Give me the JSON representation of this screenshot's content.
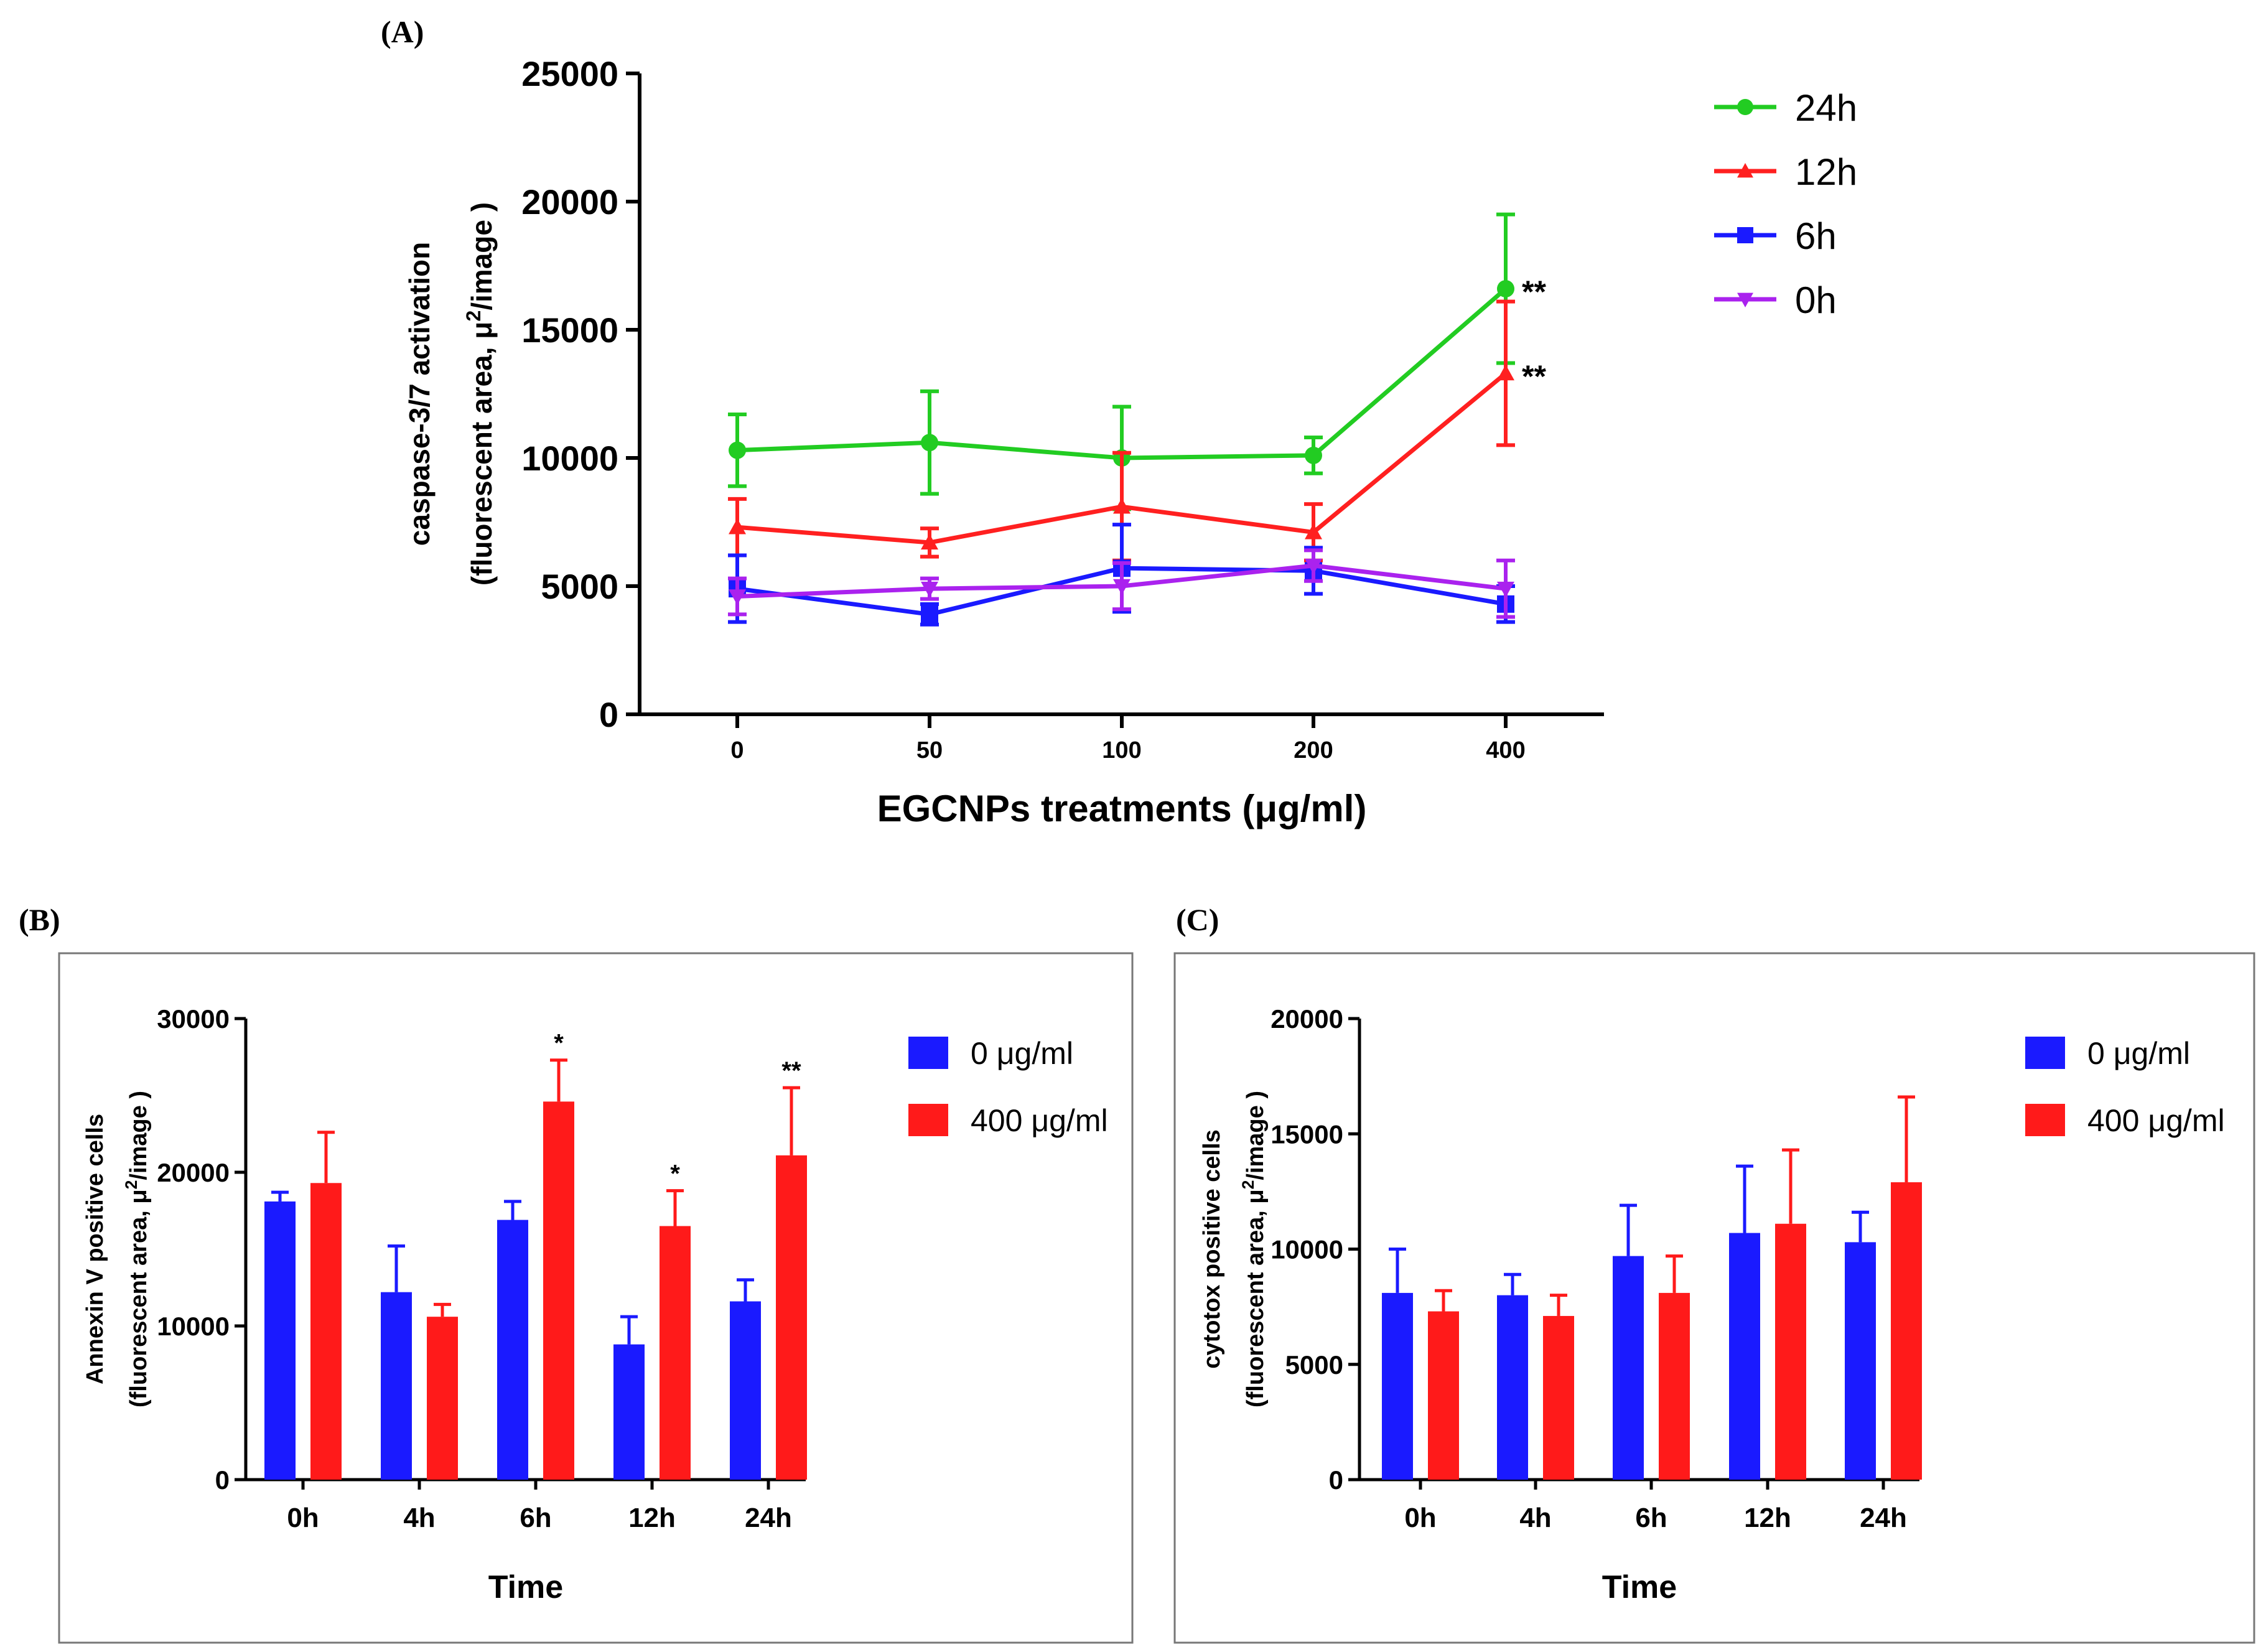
{
  "panels": {
    "A": "(A)",
    "B": "(B)",
    "C": "(C)"
  },
  "chart_data": [
    {
      "id": "A",
      "type": "line",
      "x": [
        "0",
        "50",
        "100",
        "200",
        "400"
      ],
      "xlabel": "EGCNPs treatments (μg/ml)",
      "ylabel": [
        "caspase-3/7 activation",
        "(fluorescent area, μ²/image )"
      ],
      "ylim": [
        0,
        25000
      ],
      "yticks": [
        "0",
        "5000",
        "10000",
        "15000",
        "20000",
        "25000"
      ],
      "legend_position": "right",
      "series": [
        {
          "name": "24h",
          "color": "#22cc22",
          "marker": "circle",
          "values": [
            10300,
            10600,
            10000,
            10100,
            16600
          ],
          "err": [
            1400,
            2000,
            2000,
            700,
            2900
          ],
          "sig": [
            "",
            "",
            "",
            "",
            "**"
          ]
        },
        {
          "name": "12h",
          "color": "#ff2020",
          "marker": "triangle-up",
          "values": [
            7300,
            6700,
            8100,
            7100,
            13300
          ],
          "err": [
            1100,
            550,
            2100,
            1100,
            2800
          ],
          "sig": [
            "",
            "",
            "",
            "",
            "**"
          ]
        },
        {
          "name": "6h",
          "color": "#1a1aff",
          "marker": "square",
          "values": [
            4900,
            3900,
            5700,
            5600,
            4300
          ],
          "err": [
            1300,
            400,
            1700,
            900,
            700
          ],
          "sig": [
            "",
            "",
            "",
            "",
            ""
          ]
        },
        {
          "name": "0h",
          "color": "#aa22ee",
          "marker": "triangle-down",
          "values": [
            4600,
            4900,
            5000,
            5800,
            4900
          ],
          "err": [
            700,
            400,
            900,
            600,
            1100
          ],
          "sig": [
            "",
            "",
            "",
            "",
            ""
          ]
        }
      ]
    },
    {
      "id": "B",
      "type": "bar",
      "categories": [
        "0h",
        "4h",
        "6h",
        "12h",
        "24h"
      ],
      "xlabel": "Time",
      "ylabel": [
        "Annexin V positive cells",
        "(fluorescent area, μ²/image )"
      ],
      "ylim": [
        0,
        30000
      ],
      "yticks": [
        "0",
        "10000",
        "20000",
        "30000"
      ],
      "legend_position": "top-right",
      "series": [
        {
          "name": "0 μg/ml",
          "color": "#1a1aff",
          "values": [
            18100,
            12200,
            16900,
            8800,
            11600
          ],
          "err": [
            600,
            3000,
            1200,
            1800,
            1400
          ],
          "sig": [
            "",
            "",
            "",
            "",
            ""
          ]
        },
        {
          "name": "400 μg/ml",
          "color": "#ff1a1a",
          "values": [
            19300,
            10600,
            24600,
            16500,
            21100
          ],
          "err": [
            3300,
            800,
            2700,
            2300,
            4400
          ],
          "sig": [
            "",
            "",
            "*",
            "*",
            "**"
          ]
        }
      ]
    },
    {
      "id": "C",
      "type": "bar",
      "categories": [
        "0h",
        "4h",
        "6h",
        "12h",
        "24h"
      ],
      "xlabel": "Time",
      "ylabel": [
        "cytotox positive cells",
        "(fluorescent area, μ²/image )"
      ],
      "ylim": [
        0,
        20000
      ],
      "yticks": [
        "0",
        "5000",
        "10000",
        "15000",
        "20000"
      ],
      "legend_position": "top-right",
      "series": [
        {
          "name": "0 μg/ml",
          "color": "#1a1aff",
          "values": [
            8100,
            8000,
            9700,
            10700,
            10300
          ],
          "err": [
            1900,
            900,
            2200,
            2900,
            1300
          ],
          "sig": [
            "",
            "",
            "",
            "",
            ""
          ]
        },
        {
          "name": "400 μg/ml",
          "color": "#ff1a1a",
          "values": [
            7300,
            7100,
            8100,
            11100,
            12900
          ],
          "err": [
            900,
            900,
            1600,
            3200,
            3700
          ],
          "sig": [
            "",
            "",
            "",
            "",
            ""
          ]
        }
      ]
    }
  ]
}
